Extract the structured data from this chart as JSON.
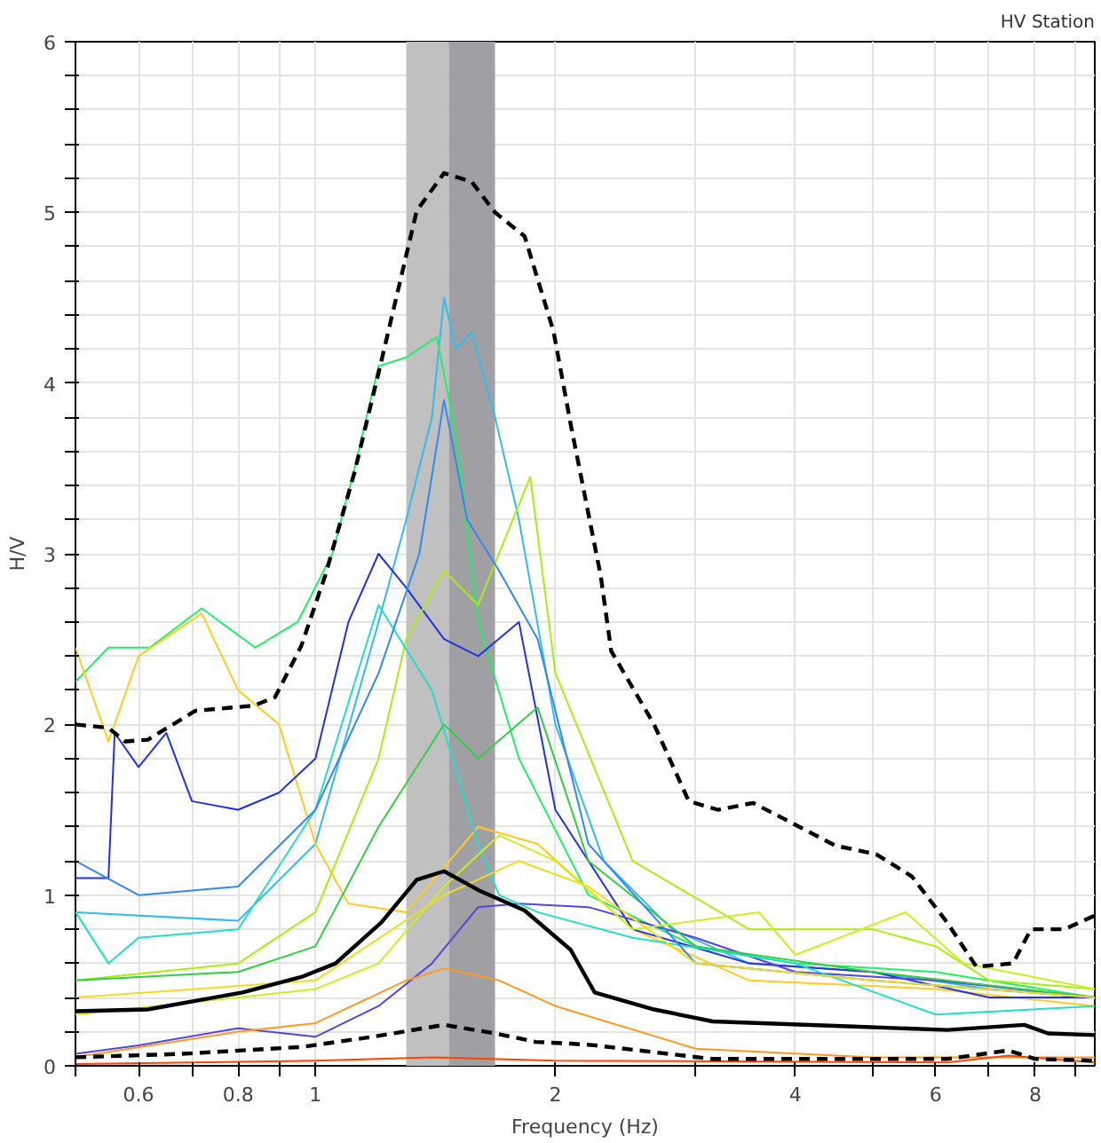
{
  "chart_data": {
    "type": "line",
    "title": "HV Station",
    "xlabel": "Frequency (Hz)",
    "ylabel": "H/V",
    "log": "x",
    "grid": true,
    "marker": "none",
    "xlim": [
      0.5,
      9.5
    ],
    "ylim": [
      0,
      6
    ],
    "xticks": [
      {
        "value": 0.5,
        "label": null
      },
      0.6,
      {
        "value": 0.7,
        "label": null
      },
      0.8,
      {
        "value": 0.9,
        "label": null
      },
      1,
      2,
      {
        "value": 3,
        "label": null
      },
      4,
      {
        "value": 5,
        "label": null
      },
      6,
      {
        "value": 7,
        "label": null
      },
      8,
      {
        "value": 9,
        "label": null
      }
    ],
    "yticks": [
      0,
      {
        "value": 0.2,
        "label": null
      },
      {
        "value": 0.4,
        "label": null
      },
      {
        "value": 0.6,
        "label": null
      },
      {
        "value": 0.8,
        "label": null
      },
      1,
      {
        "value": 1.2,
        "label": null
      },
      {
        "value": 1.4,
        "label": null
      },
      {
        "value": 1.6,
        "label": null
      },
      {
        "value": 1.8,
        "label": null
      },
      2,
      {
        "value": 2.2,
        "label": null
      },
      {
        "value": 2.4,
        "label": null
      },
      {
        "value": 2.6,
        "label": null
      },
      {
        "value": 2.8,
        "label": null
      },
      3,
      {
        "value": 3.2,
        "label": null
      },
      {
        "value": 3.4,
        "label": null
      },
      {
        "value": 3.6,
        "label": null
      },
      {
        "value": 3.8,
        "label": null
      },
      4,
      {
        "value": 4.2,
        "label": null
      },
      {
        "value": 4.4,
        "label": null
      },
      {
        "value": 4.6,
        "label": null
      },
      {
        "value": 4.8,
        "label": null
      },
      5,
      {
        "value": 5.2,
        "label": null
      },
      {
        "value": 5.4,
        "label": null
      },
      {
        "value": 5.6,
        "label": null
      },
      {
        "value": 5.8,
        "label": null
      },
      6
    ],
    "bands": [
      {
        "axis": "x",
        "from": 1.3,
        "to": 1.47,
        "color": "#c0c0c0"
      },
      {
        "axis": "x",
        "from": 1.47,
        "to": 1.68,
        "color": "#a0a0a4"
      }
    ],
    "series": [
      {
        "color": "#33bbee",
        "x": [
          0.5,
          0.8,
          1.0,
          1.2,
          1.3,
          1.4,
          1.45,
          1.5,
          1.57,
          1.68,
          1.8,
          2.0,
          2.3,
          2.8,
          3.5,
          5,
          7,
          9.5
        ],
        "values": [
          0.9,
          0.85,
          1.3,
          2.6,
          3.2,
          3.8,
          4.5,
          4.2,
          4.3,
          3.8,
          3.2,
          2.0,
          1.2,
          0.8,
          0.6,
          0.55,
          0.45,
          0.4
        ]
      },
      {
        "color": "#22ee66",
        "x": [
          0.5,
          0.55,
          0.62,
          0.72,
          0.84,
          0.95,
          1.05,
          1.12,
          1.2,
          1.3,
          1.42,
          1.5,
          1.6,
          1.8,
          2.2,
          3,
          4,
          6,
          9.5
        ],
        "values": [
          2.25,
          2.45,
          2.45,
          2.68,
          2.45,
          2.6,
          3.0,
          3.5,
          4.1,
          4.15,
          4.27,
          3.7,
          2.6,
          1.8,
          1.0,
          0.7,
          0.6,
          0.55,
          0.4
        ]
      },
      {
        "color": "#ffcc22",
        "x": [
          0.5,
          0.55,
          0.6,
          0.72,
          0.8,
          0.9,
          1.0,
          1.1,
          1.3,
          1.6,
          1.9,
          2.5,
          3.5,
          6,
          9.5
        ],
        "values": [
          2.45,
          1.9,
          2.4,
          2.65,
          2.2,
          2.0,
          1.3,
          0.95,
          0.9,
          1.4,
          1.3,
          0.8,
          0.5,
          0.45,
          0.35
        ]
      },
      {
        "color": "#2233dd",
        "x": [
          0.5,
          0.55,
          0.56,
          0.6,
          0.65,
          0.7,
          0.8,
          0.9,
          1.0,
          1.1,
          1.2,
          1.3,
          1.45,
          1.6,
          1.8,
          2.0,
          2.5,
          3.5,
          5,
          7,
          9.5
        ],
        "values": [
          1.1,
          1.1,
          1.95,
          1.75,
          1.95,
          1.55,
          1.5,
          1.6,
          1.8,
          2.6,
          3.0,
          2.8,
          2.5,
          2.4,
          2.6,
          1.5,
          0.8,
          0.6,
          0.55,
          0.4,
          0.4
        ]
      },
      {
        "color": "#5544dd",
        "x": [
          0.5,
          0.6,
          0.8,
          1.0,
          1.2,
          1.4,
          1.6,
          1.8,
          2.2,
          3,
          4,
          6,
          9.5
        ],
        "values": [
          0.07,
          0.12,
          0.22,
          0.17,
          0.35,
          0.6,
          0.93,
          0.95,
          0.93,
          0.75,
          0.55,
          0.5,
          0.4
        ]
      },
      {
        "color": "#ff9922",
        "x": [
          0.5,
          0.8,
          1.0,
          1.3,
          1.45,
          1.7,
          2,
          3,
          5,
          9.5
        ],
        "values": [
          0.05,
          0.2,
          0.25,
          0.5,
          0.57,
          0.5,
          0.35,
          0.1,
          0.05,
          0.05
        ]
      },
      {
        "color": "#aaee11",
        "x": [
          0.5,
          0.8,
          1.0,
          1.2,
          1.3,
          1.45,
          1.6,
          1.86,
          2.0,
          2.5,
          3.5,
          5,
          6,
          7,
          9.5
        ],
        "values": [
          0.5,
          0.6,
          0.9,
          1.8,
          2.5,
          2.9,
          2.7,
          3.45,
          2.3,
          1.2,
          0.8,
          0.8,
          0.7,
          0.5,
          0.45
        ]
      },
      {
        "color": "#22ddcc",
        "x": [
          0.5,
          0.55,
          0.6,
          0.8,
          1.0,
          1.2,
          1.4,
          1.6,
          1.7,
          1.9,
          2.5,
          4,
          6,
          9.5
        ],
        "values": [
          0.9,
          0.6,
          0.75,
          0.8,
          1.5,
          2.7,
          2.2,
          1.3,
          1.0,
          0.9,
          0.75,
          0.6,
          0.3,
          0.35
        ]
      },
      {
        "color": "#33cc44",
        "x": [
          0.5,
          0.8,
          1.0,
          1.2,
          1.45,
          1.6,
          1.9,
          2.2,
          3,
          5,
          9.5
        ],
        "values": [
          0.5,
          0.55,
          0.7,
          1.4,
          2.0,
          1.8,
          2.1,
          1.2,
          0.7,
          0.55,
          0.4
        ]
      },
      {
        "color": "#3388ee",
        "x": [
          0.5,
          0.6,
          0.8,
          1.0,
          1.2,
          1.35,
          1.45,
          1.55,
          1.7,
          1.9,
          2.2,
          3,
          5,
          9.5
        ],
        "values": [
          1.2,
          1.0,
          1.05,
          1.5,
          2.3,
          3.0,
          3.9,
          3.2,
          2.9,
          2.5,
          1.3,
          0.6,
          0.5,
          0.4
        ]
      },
      {
        "color": "#ccee22",
        "x": [
          0.5,
          0.8,
          1.0,
          1.2,
          1.45,
          1.7,
          2.0,
          2.5,
          3.6,
          4,
          5.5,
          6.5,
          9.5
        ],
        "values": [
          0.3,
          0.4,
          0.45,
          0.6,
          1.05,
          1.35,
          1.2,
          0.8,
          0.9,
          0.65,
          0.9,
          0.6,
          0.45
        ]
      },
      {
        "color": "#eedd22",
        "x": [
          0.5,
          1.0,
          1.45,
          1.8,
          2.2,
          3,
          5,
          9.5
        ],
        "values": [
          0.4,
          0.5,
          1.0,
          1.2,
          1.05,
          0.6,
          0.5,
          0.4
        ]
      },
      {
        "color": "#ff4500",
        "x": [
          0.5,
          1.0,
          1.4,
          2,
          6.2,
          7.4,
          9.5
        ],
        "values": [
          0.01,
          0.03,
          0.05,
          0.03,
          0.02,
          0.06,
          0.02
        ]
      },
      {
        "color": "#000000",
        "line_style": "solid",
        "x": [
          0.5,
          0.616,
          0.81,
          0.96,
          1.06,
          1.21,
          1.34,
          1.45,
          1.6,
          1.83,
          2.09,
          2.24,
          2.66,
          3.15,
          4.73,
          6.2,
          7.75,
          8.3,
          9.5
        ],
        "values": [
          0.32,
          0.33,
          0.43,
          0.52,
          0.6,
          0.84,
          1.09,
          1.14,
          1.03,
          0.91,
          0.68,
          0.43,
          0.33,
          0.26,
          0.23,
          0.21,
          0.24,
          0.19,
          0.18
        ]
      },
      {
        "color": "#000000",
        "line_style": "dashed",
        "x": [
          0.5,
          0.55,
          0.577,
          0.616,
          0.707,
          0.837,
          0.89,
          0.96,
          1.03,
          1.12,
          1.21,
          1.34,
          1.45,
          1.57,
          1.68,
          1.83,
          1.99,
          2.09,
          2.28,
          2.35,
          2.66,
          2.94,
          3.2,
          3.54,
          3.86,
          4.49,
          5.05,
          5.6,
          6.2,
          6.75,
          7.5,
          7.9,
          8.7,
          9.5
        ],
        "values": [
          2.0,
          1.98,
          1.9,
          1.91,
          2.08,
          2.11,
          2.16,
          2.46,
          2.88,
          3.48,
          4.13,
          5.01,
          5.23,
          5.18,
          5.0,
          4.86,
          4.3,
          3.76,
          2.87,
          2.43,
          2.0,
          1.55,
          1.5,
          1.54,
          1.45,
          1.29,
          1.24,
          1.11,
          0.84,
          0.58,
          0.6,
          0.8,
          0.8,
          0.88
        ]
      },
      {
        "color": "#000000",
        "line_style": "dashed",
        "x": [
          0.5,
          0.68,
          0.96,
          1.18,
          1.45,
          1.68,
          1.89,
          2.09,
          2.24,
          3.15,
          6.2,
          7.4,
          8.0,
          9.5
        ],
        "values": [
          0.05,
          0.07,
          0.11,
          0.17,
          0.24,
          0.19,
          0.14,
          0.13,
          0.12,
          0.04,
          0.04,
          0.09,
          0.04,
          0.03
        ]
      }
    ]
  }
}
